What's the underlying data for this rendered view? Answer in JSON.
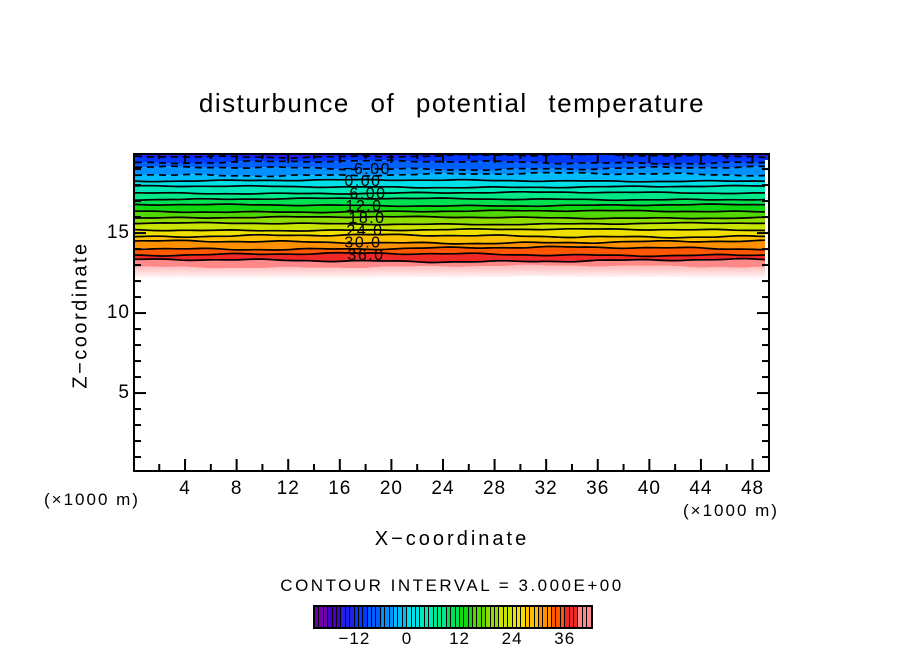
{
  "chart_data": {
    "type": "filled-contour",
    "title": "disturbunce of potential temperature",
    "xlabel": "X−coordinate",
    "ylabel": "Z−coordinate",
    "x_unit_label_left": "(×1000 m)",
    "x_unit_label_right": "(×1000 m)",
    "contour_interval": 3.0,
    "contour_interval_text": "CONTOUR INTERVAL = 3.000E+00",
    "x_range": [
      0.12,
      49.2
    ],
    "z_range": [
      0.19,
      19.88
    ],
    "x_ticks_labeled": [
      4,
      8,
      12,
      16,
      20,
      24,
      28,
      32,
      36,
      40,
      44,
      48
    ],
    "x_minor_step": 2,
    "z_ticks_labeled": [
      5,
      10,
      15
    ],
    "z_minor_step": 1,
    "value_profile": {
      "description": "layered field, nearly uniform in x; value rises downward from about -12 at plot top (z≈19.9) to +42 at z≈12.9, white (beyond range) below",
      "v_at_plot_top": -12.5,
      "units_per_km": 7.8,
      "white_below_value": 42
    },
    "dashed_levels": [
      -12,
      -9,
      -6,
      -3
    ],
    "solid_levels": [
      0,
      3,
      6,
      9,
      12,
      15,
      18,
      21,
      24,
      27,
      30,
      33,
      36,
      39
    ],
    "contour_labels": [
      {
        "text": "−6.00",
        "value": -6
      },
      {
        "text": "0.00",
        "value": 0
      },
      {
        "text": "6.00",
        "value": 6
      },
      {
        "text": "12.0",
        "value": 12
      },
      {
        "text": "18.0",
        "value": 18
      },
      {
        "text": "24.0",
        "value": 24
      },
      {
        "text": "30.0",
        "value": 30
      },
      {
        "text": "36.0",
        "value": 36
      }
    ],
    "band_min": -21,
    "band_step": 3,
    "band_colors": [
      "#7000A8",
      "#4800C8",
      "#2020E8",
      "#0038FF",
      "#0060FF",
      "#0090FF",
      "#00BCFF",
      "#00E0E8",
      "#00E8B8",
      "#00E888",
      "#00E050",
      "#10D810",
      "#50D800",
      "#90DC00",
      "#C8E400",
      "#F0E000",
      "#FFC000",
      "#FF9000",
      "#FF5800",
      "#F02828",
      "#FF8888"
    ],
    "fade_color": "#FFB6B6",
    "colorbar": {
      "range": [
        -21,
        42
      ],
      "cells": 63,
      "labels": [
        "−12",
        "0",
        "12",
        "24",
        "36"
      ],
      "label_values": [
        -12,
        0,
        12,
        24,
        36
      ]
    }
  }
}
